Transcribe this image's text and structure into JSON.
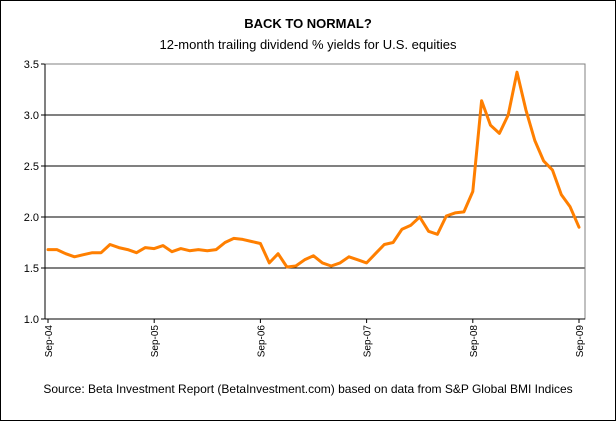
{
  "colors": {
    "line": "#ff7f00",
    "grid": "#000000",
    "frame": "#000000",
    "background": "#ffffff"
  },
  "chart_data": {
    "type": "line",
    "title": "BACK TO NORMAL?",
    "subtitle": "12-month trailing dividend % yields for U.S. equities",
    "source": "Source: Beta Investment Report (BetaInvestment.com) based on data from S&P Global BMI Indices",
    "xlabel": "",
    "ylabel": "",
    "ylim": [
      1.0,
      3.5
    ],
    "yticks": [
      "1.0",
      "1.5",
      "2.0",
      "2.5",
      "3.0",
      "3.5"
    ],
    "xticks": [
      "Sep-04",
      "Sep-05",
      "Sep-06",
      "Sep-07",
      "Sep-08",
      "Sep-09"
    ],
    "grid": "horizontal",
    "legend": "none",
    "series": [
      {
        "values": [
          1.68,
          1.68,
          1.64,
          1.61,
          1.63,
          1.65,
          1.65,
          1.73,
          1.7,
          1.68,
          1.65,
          1.7,
          1.69,
          1.72,
          1.66,
          1.69,
          1.67,
          1.68,
          1.67,
          1.68,
          1.75,
          1.79,
          1.78,
          1.76,
          1.74,
          1.55,
          1.64,
          1.51,
          1.52,
          1.58,
          1.62,
          1.55,
          1.52,
          1.55,
          1.61,
          1.58,
          1.55,
          1.64,
          1.73,
          1.75,
          1.88,
          1.92,
          2.0,
          1.86,
          1.83,
          2.01,
          2.04,
          2.05,
          2.25,
          3.14,
          2.9,
          2.82,
          3.0,
          3.42,
          3.05,
          2.75,
          2.55,
          2.46,
          2.22,
          2.1,
          1.9
        ]
      }
    ]
  }
}
